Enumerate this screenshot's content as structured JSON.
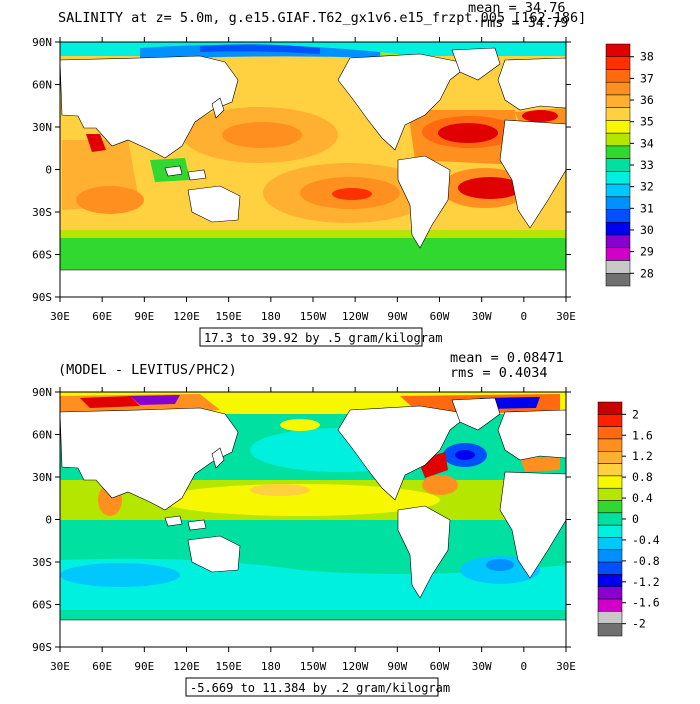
{
  "panels": [
    {
      "title": "SALINITY at z=   5.0m, g.e15.GIAF.T62_gx1v6.e15_frzpt.005 [162-186]",
      "stats": {
        "mean": "mean = 34.76",
        "rms": "rms = 34.79"
      },
      "range_note": "17.3 to 39.92 by .5 gram/kilogram",
      "lat_labels": [
        "90N",
        "60N",
        "30N",
        "0",
        "30S",
        "60S",
        "90S"
      ],
      "lon_labels": [
        "30E",
        "60E",
        "90E",
        "120E",
        "150E",
        "180",
        "150W",
        "120W",
        "90W",
        "60W",
        "30W",
        "0",
        "30E"
      ],
      "colorbar": {
        "labels": [
          "38",
          "37",
          "36",
          "35",
          "34",
          "33",
          "32",
          "31",
          "30",
          "29",
          "28"
        ],
        "colors": [
          "#e00000",
          "#ff3000",
          "#ff6a10",
          "#ff9020",
          "#ffb030",
          "#ffd040",
          "#f7f700",
          "#b4e600",
          "#30d830",
          "#00e0a0",
          "#00f0e0",
          "#00c8ff",
          "#0090ff",
          "#0050ff",
          "#0000f0",
          "#8800d0",
          "#d000c8",
          "#c8c8c8",
          "#707070"
        ]
      }
    },
    {
      "title": "(MODEL - LEVITUS/PHC2)",
      "stats": {
        "mean": "mean = 0.08471",
        "rms": "rms = 0.4034"
      },
      "range_note": "-5.669 to 11.384 by .2 gram/kilogram",
      "lat_labels": [
        "90N",
        "60N",
        "30N",
        "0",
        "30S",
        "60S",
        "90S"
      ],
      "lon_labels": [
        "30E",
        "60E",
        "90E",
        "120E",
        "150E",
        "180",
        "150W",
        "120W",
        "90W",
        "60W",
        "30W",
        "0",
        "30E"
      ],
      "colorbar": {
        "labels": [
          "2",
          "1.6",
          "1.2",
          "0.8",
          "0.4",
          "0",
          "-0.4",
          "-0.8",
          "-1.2",
          "-1.6",
          "-2"
        ],
        "colors": [
          "#c80000",
          "#ff2000",
          "#ff6a10",
          "#ff9020",
          "#ffb030",
          "#ffd040",
          "#f7f700",
          "#b4e600",
          "#30d830",
          "#00e0a0",
          "#00f0e0",
          "#00c8ff",
          "#0090ff",
          "#0050ff",
          "#0000f0",
          "#8800d0",
          "#d000c8",
          "#c8c8c8",
          "#707070"
        ]
      }
    }
  ],
  "colors": {
    "land": "#ffffff",
    "salinity_open_ocean": "#ffd040",
    "salinity_high": "#ff9020",
    "salinity_low": "#30d830",
    "diff_background": "#00e0a0",
    "diff_positive": "#b4e600",
    "diff_negative": "#00f0e0"
  }
}
